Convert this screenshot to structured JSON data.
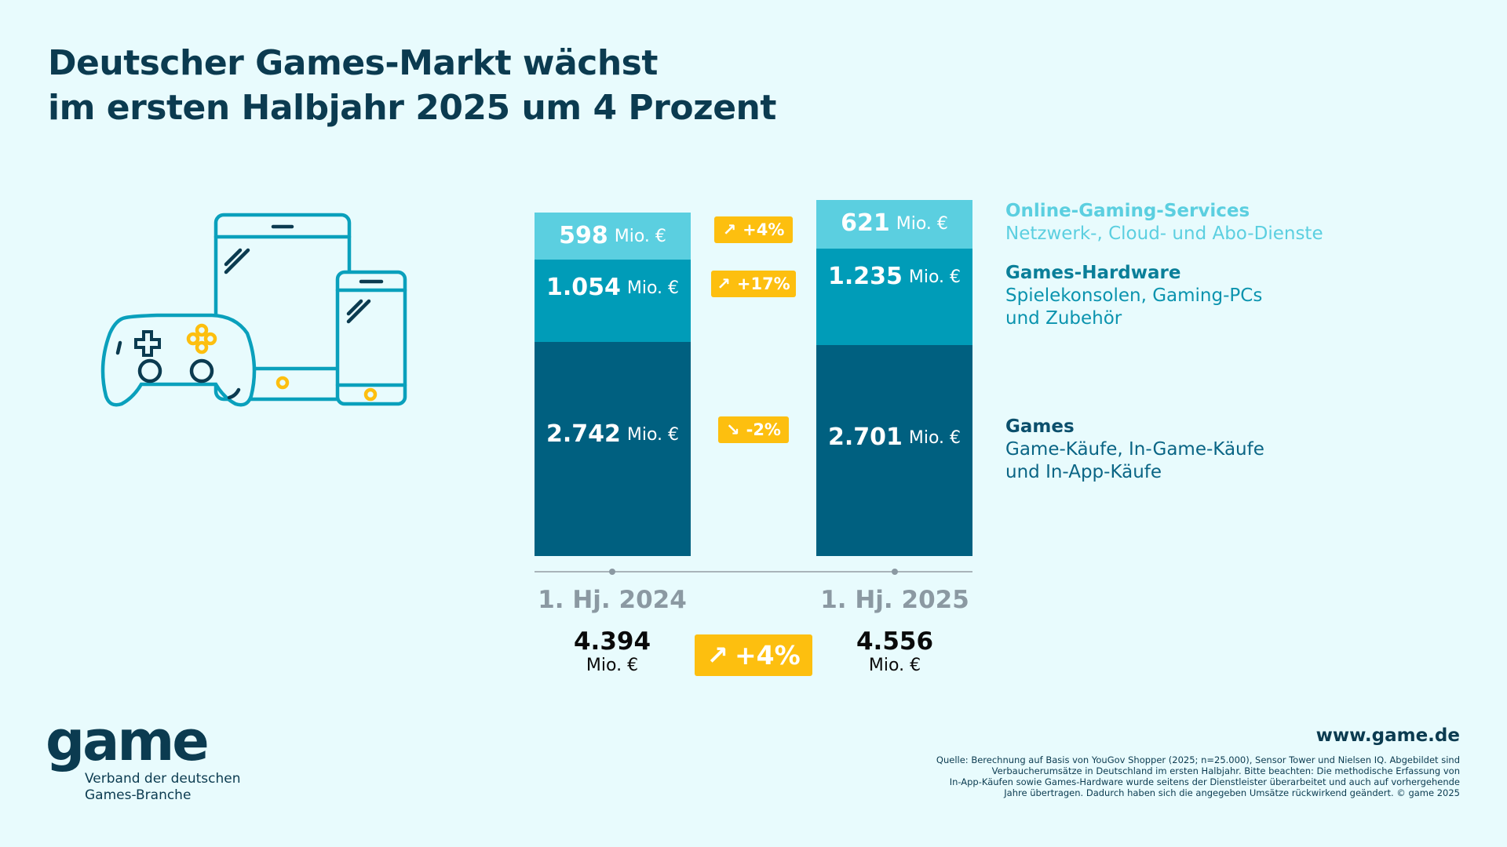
{
  "title": [
    "Deutscher Games-Markt wächst",
    "im ersten Halbjahr 2025 um 4 Prozent"
  ],
  "colors": {
    "online": "#5bcfe0",
    "hardware": "#009cb8",
    "games": "#006080",
    "badge": "#fdbf0f",
    "background": "#e8fbfd"
  },
  "illustration": "gamepad-tablet-smartphone-icons",
  "chart_data": {
    "type": "bar",
    "stacked": true,
    "categories": [
      "1. Hj. 2024",
      "1. Hj. 2025"
    ],
    "unit": "Mio. €",
    "series": [
      {
        "name": "Games",
        "values": [
          2742,
          2701
        ],
        "labels": [
          "2.742",
          "2.701"
        ],
        "change": "-2%",
        "trend": "down"
      },
      {
        "name": "Games-Hardware",
        "values": [
          1054,
          1235
        ],
        "labels": [
          "1.054",
          "1.235"
        ],
        "change": "+17%",
        "trend": "up"
      },
      {
        "name": "Online-Gaming-Services",
        "values": [
          598,
          621
        ],
        "labels": [
          "598",
          "621"
        ],
        "change": "+4%",
        "trend": "up"
      }
    ],
    "totals": {
      "values": [
        4394,
        4556
      ],
      "labels": [
        "4.394",
        "4.556"
      ],
      "unit": "Mio. €",
      "change": "+4%"
    },
    "legend": [
      {
        "title": "Online-Gaming-Services",
        "desc": [
          "Netzwerk-, Cloud- und Abo-Dienste"
        ]
      },
      {
        "title": "Games-Hardware",
        "desc": [
          "Spielekonsolen, Gaming-PCs",
          "und Zubehör"
        ]
      },
      {
        "title": "Games",
        "desc": [
          "Game-Käufe, In-Game-Käufe",
          "und In-App-Käufe"
        ]
      }
    ],
    "legend_position": "right"
  },
  "footer": {
    "logo": "game",
    "logo_sub": [
      "Verband der deutschen",
      "Games-Branche"
    ],
    "url": "www.game.de",
    "source": [
      "Quelle: Berechnung auf Basis von YouGov Shopper (2025; n=25.000), Sensor Tower und Nielsen IQ. Abgebildet sind",
      "Verbaucherumsätze in Deutschland im ersten Halbjahr. Bitte beachten: Die methodische Erfassung von",
      "In-App-Käufen sowie Games-Hardware wurde seitens der Dienstleister überarbeitet und auch auf vorhergehende",
      "Jahre übertragen. Dadurch haben sich die angegeben Umsätze rückwirkend geändert. © game 2025"
    ]
  }
}
